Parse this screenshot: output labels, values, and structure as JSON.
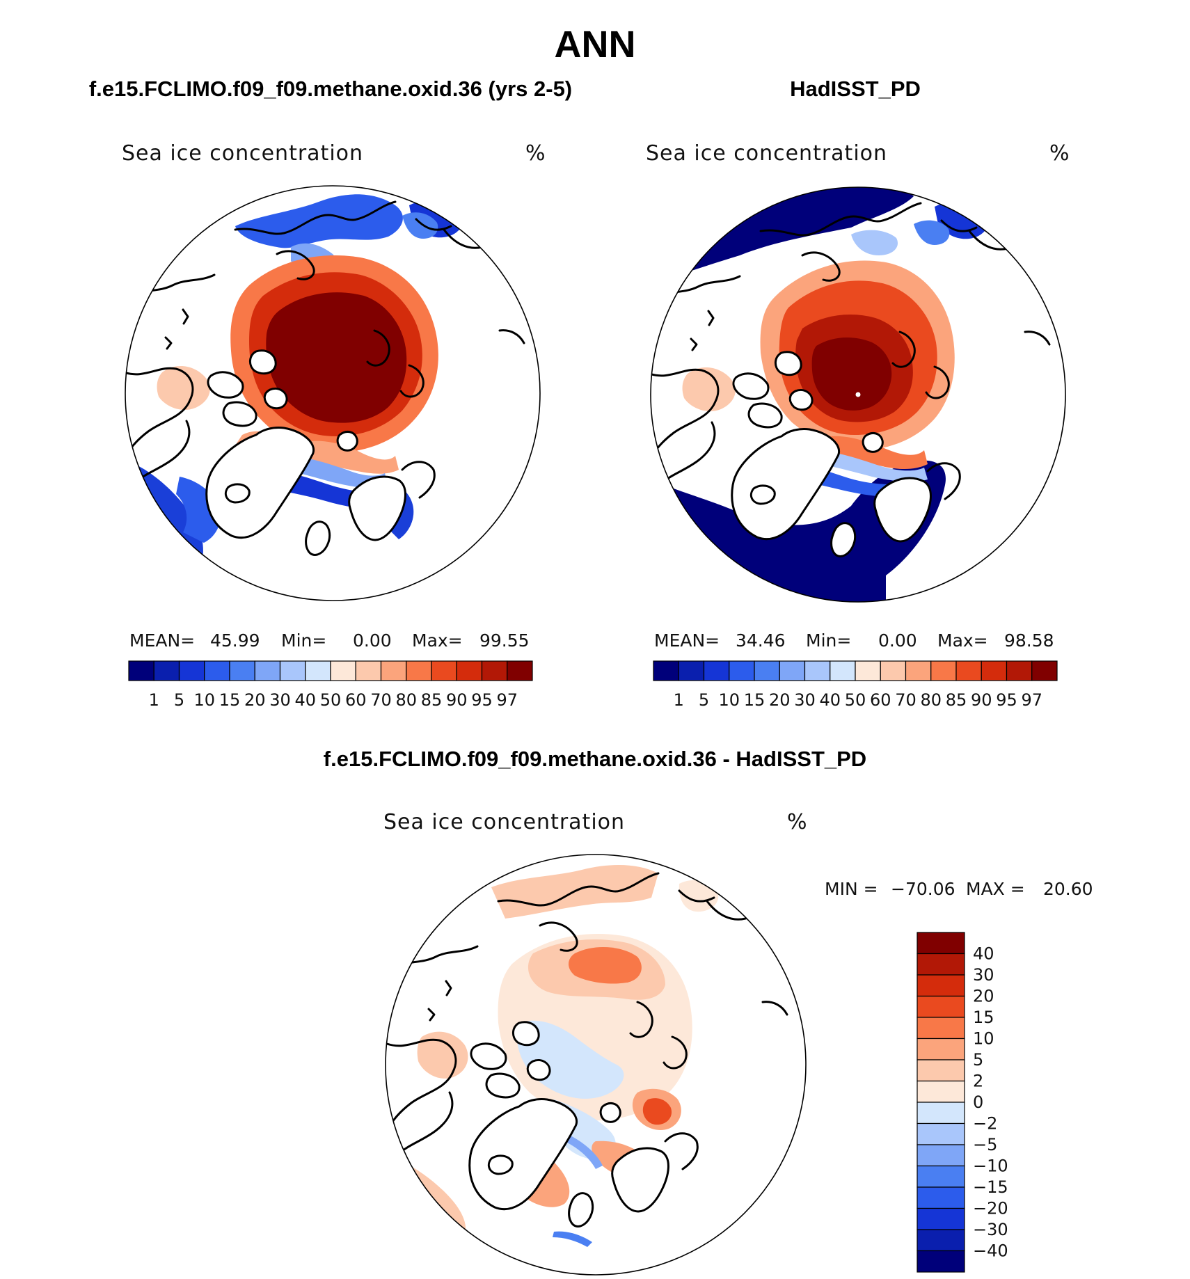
{
  "main_title": "ANN",
  "panel_left": {
    "case_title": "f.e15.FCLIMO.f09_f09.methane.oxid.36 (yrs 2-5)",
    "field_label": "Sea ice concentration",
    "units": "%",
    "stats": {
      "mean_label": "MEAN=",
      "mean": "45.99",
      "min_label": "Min=",
      "min": "0.00",
      "max_label": "Max=",
      "max": "99.55"
    }
  },
  "panel_right": {
    "case_title": "HadISST_PD",
    "field_label": "Sea ice concentration",
    "units": "%",
    "stats": {
      "mean_label": "MEAN=",
      "mean": "34.46",
      "min_label": "Min=",
      "min": "0.00",
      "max_label": "Max=",
      "max": "98.58"
    }
  },
  "panel_diff": {
    "case_title": "f.e15.FCLIMO.f09_f09.methane.oxid.36 - HadISST_PD",
    "field_label": "Sea ice concentration",
    "units": "%",
    "stats": {
      "min_label": "MIN =",
      "min": "−70.06",
      "max_label": "MAX =",
      "max": "20.60"
    }
  },
  "colorbar_top": {
    "tick_labels": [
      "1",
      "5",
      "10",
      "15",
      "20",
      "30",
      "40",
      "50",
      "60",
      "70",
      "80",
      "85",
      "90",
      "95",
      "97"
    ],
    "colors": [
      "#00007a",
      "#0a1fae",
      "#1535d6",
      "#2c5cec",
      "#4a7ff2",
      "#7fa6f7",
      "#a9c6fb",
      "#d3e6fc",
      "#fde8d9",
      "#fcc9ad",
      "#fba47c",
      "#f87848",
      "#ea4a1f",
      "#d42c0c",
      "#b21806",
      "#800000"
    ]
  },
  "colorbar_diff": {
    "tick_labels": [
      "40",
      "30",
      "20",
      "15",
      "10",
      "5",
      "2",
      "0",
      "−2",
      "−5",
      "−10",
      "−15",
      "−20",
      "−30",
      "−40"
    ],
    "colors": [
      "#800000",
      "#b21806",
      "#d42c0c",
      "#ea4a1f",
      "#f87848",
      "#fba47c",
      "#fcc9ad",
      "#fde8d9",
      "#d3e6fc",
      "#a9c6fb",
      "#7fa6f7",
      "#4a7ff2",
      "#2c5cec",
      "#1535d6",
      "#0a1fae",
      "#00007a"
    ]
  }
}
